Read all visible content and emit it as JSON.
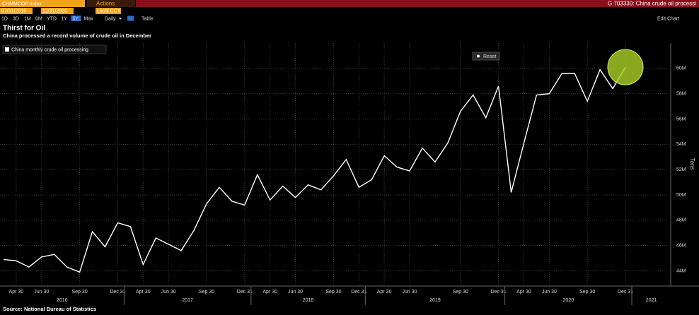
{
  "toolbar": {
    "ticker": "CHMMCOP Index",
    "actions": "Actions",
    "window_title": "G 703330: China crude oil processi",
    "start_date": "07/31/2016",
    "end_date": "12/31/2020",
    "currency": "Local CCY",
    "periods": [
      "1D",
      "3D",
      "1M",
      "6M",
      "YTD",
      "1Y",
      "5Y",
      "Max"
    ],
    "frequency": "Daily",
    "table": "Table",
    "edit_chart": "Edit Chart",
    "reset": "Reset"
  },
  "chart_data": {
    "type": "line",
    "title": "Thirst for Oil",
    "subtitle": "China processed a record volume of crude oil in December",
    "source": "Source: National Bureau of Statistics",
    "y_label": "Tons",
    "categories": [
      null,
      "Apr 30",
      null,
      "Jun 30",
      null,
      null,
      "Sep 30",
      null,
      null,
      "Dec 31",
      null,
      "Apr 30",
      null,
      "Jun 30",
      null,
      null,
      "Sep 30",
      null,
      null,
      "Dec 31",
      null,
      "Apr 30",
      null,
      "Jun 30",
      null,
      null,
      "Sep 30",
      null,
      "Dec 31",
      null,
      "Apr 30",
      null,
      "Jun 30",
      null,
      null,
      null,
      "Sep 30",
      null,
      null,
      "Dec 31",
      null,
      "Apr 30",
      null,
      "Jun 30",
      null,
      null,
      "Sep 30",
      null,
      null,
      "Dec 31"
    ],
    "years": [
      "2016",
      "2017",
      "2018",
      "2019",
      "2020",
      "2021"
    ],
    "series": [
      {
        "name": "China monthly crude oil processing",
        "color": "#ffffff",
        "values": [
          44.9,
          44.8,
          44.3,
          45.1,
          45.3,
          44.3,
          43.9,
          47.1,
          45.9,
          47.8,
          47.5,
          44.5,
          46.6,
          46.1,
          45.6,
          47.2,
          49.3,
          50.6,
          49.5,
          49.2,
          51.6,
          49.6,
          50.7,
          49.8,
          50.8,
          50.4,
          51.5,
          52.8,
          50.6,
          51.2,
          53.1,
          52.2,
          51.9,
          53.7,
          52.6,
          54.1,
          56.6,
          57.9,
          56.1,
          58.6,
          50.2,
          54.1,
          57.9,
          58.0,
          59.6,
          59.6,
          57.4,
          59.9,
          58.4,
          60.1
        ]
      }
    ],
    "ylim": [
      42.8,
      62
    ],
    "yticks": [
      {
        "value": 44,
        "label": "44M"
      },
      {
        "value": 46,
        "label": "46M"
      },
      {
        "value": 48,
        "label": "48M"
      },
      {
        "value": 50,
        "label": "50M"
      },
      {
        "value": 52,
        "label": "52M"
      },
      {
        "value": 54,
        "label": "54M"
      },
      {
        "value": 56,
        "label": "56M"
      },
      {
        "value": 58,
        "label": "58M"
      },
      {
        "value": 60,
        "label": "60M"
      }
    ],
    "grid": true
  }
}
